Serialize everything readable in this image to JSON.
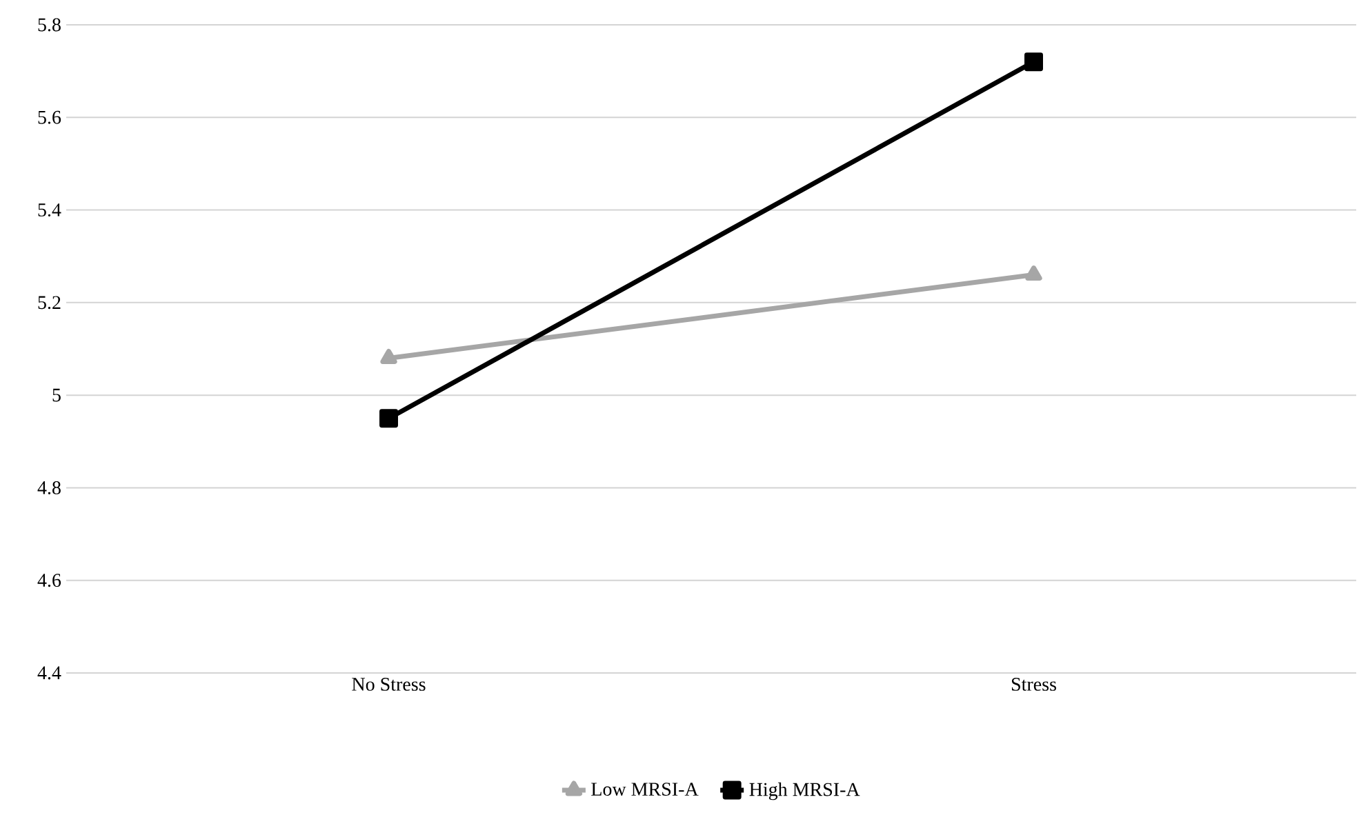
{
  "chart_data": {
    "type": "line",
    "categories": [
      "No Stress",
      "Stress"
    ],
    "series": [
      {
        "name": "Low MRSI-A",
        "color": "#a6a6a6",
        "values": [
          5.08,
          5.26
        ],
        "marker": "triangle"
      },
      {
        "name": "High MRSI-A",
        "color": "#000000",
        "values": [
          4.95,
          5.72
        ],
        "marker": "square"
      }
    ],
    "ylim": [
      4.4,
      5.8
    ],
    "yticks": [
      4.4,
      4.6,
      4.8,
      5,
      5.2,
      5.4,
      5.6,
      5.8
    ],
    "grid": "y",
    "legend": "bottom",
    "line_style": "solid"
  }
}
